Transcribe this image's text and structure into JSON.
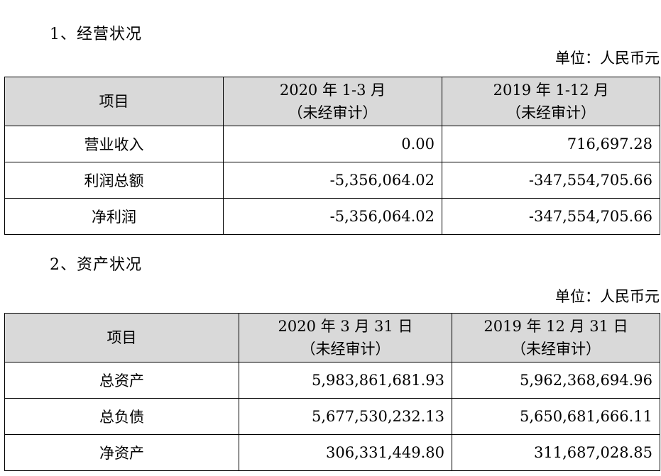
{
  "section1": {
    "heading": "1、经营状况",
    "unit": "单位：人民币元",
    "header": {
      "item": "项目",
      "col1_line1": "2020 年 1-3 月",
      "col1_line2": "（未经审计）",
      "col2_line1": "2019 年 1-12 月",
      "col2_line2": "（未经审计）"
    },
    "rows": [
      {
        "label": "营业收入",
        "v1": "0.00",
        "v2": "716,697.28"
      },
      {
        "label": "利润总额",
        "v1": "-5,356,064.02",
        "v2": "-347,554,705.66"
      },
      {
        "label": "净利润",
        "v1": "-5,356,064.02",
        "v2": "-347,554,705.66"
      }
    ]
  },
  "section2": {
    "heading": "2、资产状况",
    "unit": "单位：人民币元",
    "header": {
      "item": "项目",
      "col1_line1": "2020 年 3 月 31 日",
      "col1_line2": "（未经审计）",
      "col2_line1": "2019 年 12 月 31 日",
      "col2_line2": "（未经审计）"
    },
    "rows": [
      {
        "label": "总资产",
        "v1": "5,983,861,681.93",
        "v2": "5,962,368,694.96"
      },
      {
        "label": "总负债",
        "v1": "5,677,530,232.13",
        "v2": "5,650,681,666.11"
      },
      {
        "label": "净资产",
        "v1": "306,331,449.80",
        "v2": "311,687,028.85"
      }
    ]
  }
}
